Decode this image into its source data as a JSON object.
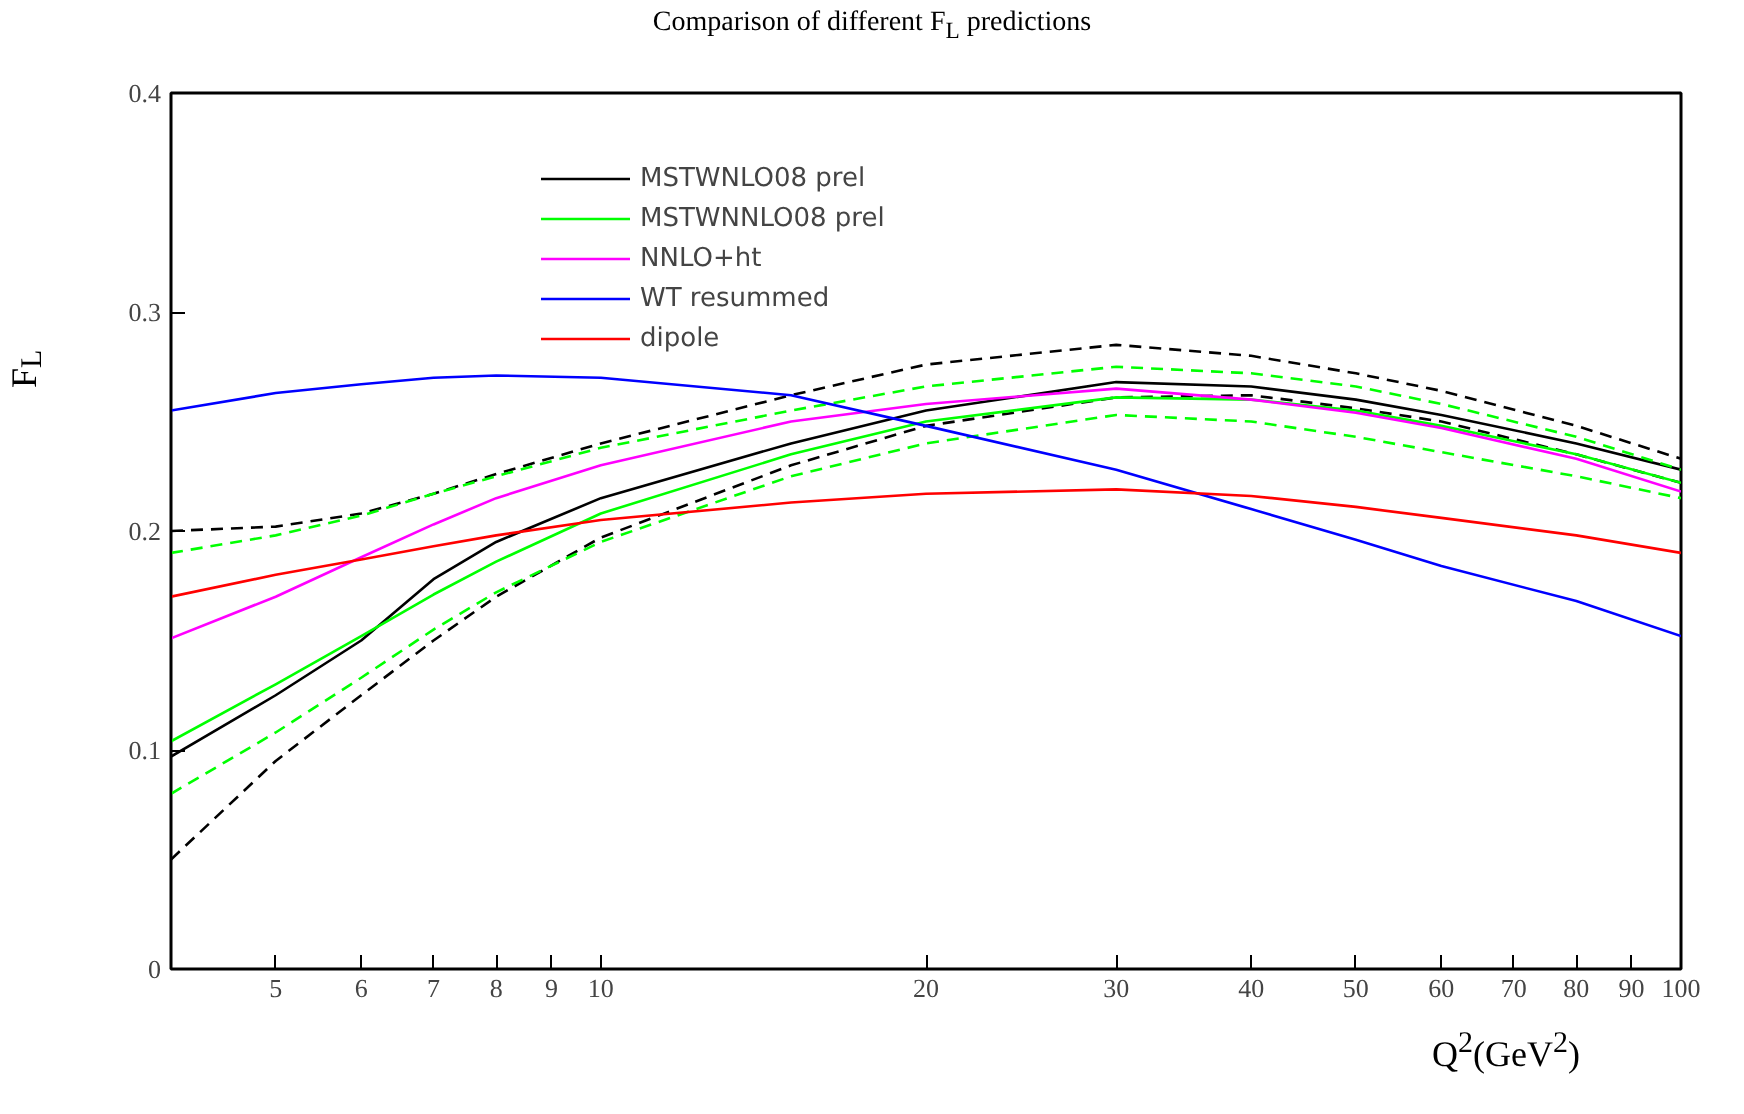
{
  "chart_data": {
    "type": "line",
    "title": "Comparison of different F$_{L}$ predictions",
    "xlabel": "Q$^{2}$(GeV$^{2}$)",
    "ylabel": "F$_{L}$",
    "x": [
      4,
      5,
      6,
      7,
      8,
      10,
      15,
      20,
      30,
      40,
      50,
      60,
      80,
      100
    ],
    "log": "x",
    "xlim": [
      4,
      100
    ],
    "xticks": [
      5,
      6,
      7,
      8,
      9,
      10,
      20,
      30,
      40,
      50,
      60,
      70,
      80,
      90,
      100
    ],
    "ylim": [
      0,
      0.4
    ],
    "yticks": [
      0,
      0.1,
      0.2,
      0.3,
      0.4
    ],
    "grid": false,
    "legend": "top left",
    "series": [
      {
        "name": "MSTWNLO08 prel",
        "color": "#000000",
        "line_style": "solid",
        "values": [
          0.097,
          0.125,
          0.15,
          0.178,
          0.195,
          0.215,
          0.24,
          0.255,
          0.268,
          0.266,
          0.26,
          0.253,
          0.24,
          0.228
        ]
      },
      {
        "color": "#000000",
        "line_style": "dashed",
        "values": [
          0.2,
          0.202,
          0.208,
          0.217,
          0.226,
          0.24,
          0.262,
          0.276,
          0.285,
          0.28,
          0.272,
          0.264,
          0.248,
          0.233
        ]
      },
      {
        "color": "#000000",
        "line_style": "dashed",
        "values": [
          0.05,
          0.095,
          0.125,
          0.15,
          0.17,
          0.197,
          0.23,
          0.248,
          0.261,
          0.262,
          0.256,
          0.25,
          0.235,
          0.222
        ]
      },
      {
        "name": "MSTWNNLO08 prel",
        "color": "#00ff00",
        "line_style": "solid",
        "values": [
          0.104,
          0.13,
          0.152,
          0.171,
          0.186,
          0.208,
          0.235,
          0.25,
          0.261,
          0.26,
          0.255,
          0.248,
          0.235,
          0.222
        ]
      },
      {
        "color": "#00ff00",
        "line_style": "dashed",
        "values": [
          0.19,
          0.198,
          0.207,
          0.217,
          0.225,
          0.238,
          0.255,
          0.266,
          0.275,
          0.272,
          0.266,
          0.258,
          0.243,
          0.228
        ]
      },
      {
        "color": "#00ff00",
        "line_style": "dashed",
        "values": [
          0.08,
          0.108,
          0.133,
          0.155,
          0.172,
          0.195,
          0.225,
          0.24,
          0.253,
          0.25,
          0.243,
          0.236,
          0.225,
          0.215
        ]
      },
      {
        "name": "NNLO+ht",
        "color": "#ff00ff",
        "line_style": "solid",
        "values": [
          0.151,
          0.17,
          0.188,
          0.203,
          0.215,
          0.23,
          0.25,
          0.258,
          0.265,
          0.26,
          0.254,
          0.247,
          0.233,
          0.218
        ]
      },
      {
        "name": "WT resummed",
        "color": "#0000ff",
        "line_style": "solid",
        "values": [
          0.255,
          0.263,
          0.267,
          0.27,
          0.271,
          0.27,
          0.262,
          0.248,
          0.228,
          0.21,
          0.196,
          0.184,
          0.168,
          0.152
        ]
      },
      {
        "name": "dipole",
        "color": "#ff0000",
        "line_style": "solid",
        "values": [
          0.17,
          0.18,
          0.187,
          0.193,
          0.198,
          0.205,
          0.213,
          0.217,
          0.219,
          0.216,
          0.211,
          0.206,
          0.198,
          0.19
        ]
      }
    ]
  }
}
